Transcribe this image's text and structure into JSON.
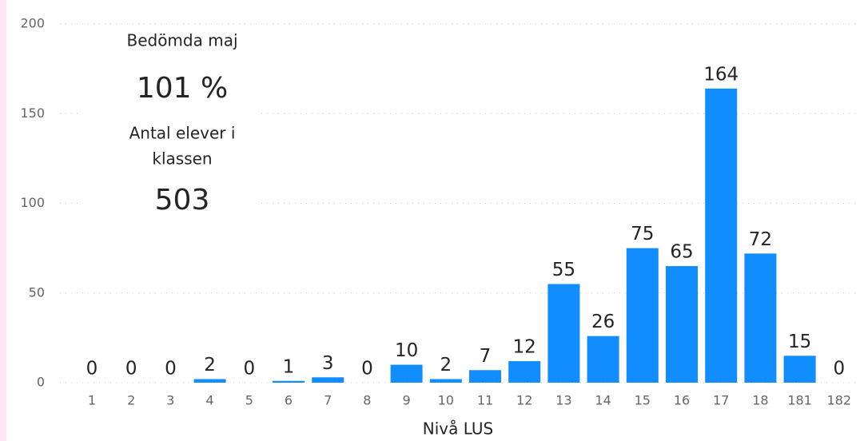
{
  "chart_data": {
    "type": "bar",
    "x_label": "Nivå LUS",
    "categories": [
      "1",
      "2",
      "3",
      "4",
      "5",
      "6",
      "7",
      "8",
      "9",
      "10",
      "11",
      "12",
      "13",
      "14",
      "15",
      "16",
      "17",
      "18",
      "181",
      "182"
    ],
    "values": [
      0,
      0,
      0,
      2,
      0,
      1,
      3,
      0,
      10,
      2,
      7,
      12,
      55,
      26,
      75,
      65,
      164,
      72,
      15,
      0
    ],
    "color": "#118dff",
    "ylim": [
      0,
      200
    ],
    "yticks": [
      0,
      50,
      100,
      150,
      200
    ],
    "grid": true
  },
  "card": {
    "label1": "Bedömda maj",
    "value1": "101 %",
    "label2a": "Antal elever i",
    "label2b": "klassen",
    "value2": "503"
  }
}
